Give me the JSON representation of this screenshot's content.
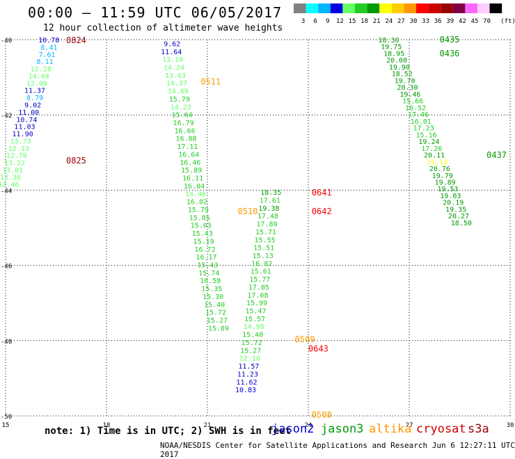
{
  "header": {
    "title": "00:00 – 11:59 UTC 06/05/2017",
    "subtitle": "12 hour collection of altimeter wave heights"
  },
  "colorbar": {
    "unit": "(ft)",
    "bins": [
      {
        "label": "3",
        "color": "#808080"
      },
      {
        "label": "6",
        "color": "#00ffff"
      },
      {
        "label": "9",
        "color": "#00b4ff"
      },
      {
        "label": "12",
        "color": "#0000e0"
      },
      {
        "label": "15",
        "color": "#66ff66"
      },
      {
        "label": "18",
        "color": "#22cc22"
      },
      {
        "label": "21",
        "color": "#009900"
      },
      {
        "label": "24",
        "color": "#ffff00"
      },
      {
        "label": "27",
        "color": "#ffcc00"
      },
      {
        "label": "30",
        "color": "#ff9900"
      },
      {
        "label": "33",
        "color": "#ff0000"
      },
      {
        "label": "36",
        "color": "#cc0000"
      },
      {
        "label": "39",
        "color": "#990000"
      },
      {
        "label": "42",
        "color": "#800040"
      },
      {
        "label": "45",
        "color": "#ff66ff"
      },
      {
        "label": "70",
        "color": "#ffccff"
      },
      {
        "label": "",
        "color": "#000000"
      }
    ]
  },
  "axes": {
    "x_ticks": [
      "15",
      "18",
      "21",
      "24",
      "27",
      "30"
    ],
    "y_ticks": [
      "-40",
      "-42",
      "-44",
      "-46",
      "-48",
      "-50"
    ]
  },
  "footer": {
    "note": "note: 1) Time is in UTC; 2) SWH is in feet",
    "satellites": [
      {
        "name": "jason2",
        "color": "#0000cc"
      },
      {
        "name": "jason3",
        "color": "#009900"
      },
      {
        "name": "altika",
        "color": "#ff9900"
      },
      {
        "name": "cryosat",
        "color": "#cc0000"
      },
      {
        "name": "s3a",
        "color": "#990000"
      }
    ],
    "credit": "NOAA/NESDIS Center for Satellite Applications and Research   Jun  6 12:27:11 UTC 2017"
  },
  "chart_data": {
    "type": "scatter",
    "x_range": [
      15,
      30
    ],
    "y_range": [
      -50,
      -40
    ],
    "passes": [
      {
        "time": "0824",
        "color": "#990000",
        "time_lon": 16.8,
        "time_lat": -40.0
      },
      {
        "time": "0825",
        "color": "#990000",
        "time_lon": 16.8,
        "time_lat": -43.2
      },
      {
        "time": "0511",
        "color": "#ff9900",
        "time_lon": 20.8,
        "time_lat": -41.1
      },
      {
        "time": "0510",
        "color": "#ff9900",
        "time_lon": 21.9,
        "time_lat": -44.55
      },
      {
        "time": "0641",
        "color": "#ff0000",
        "time_lon": 24.1,
        "time_lat": -44.05
      },
      {
        "time": "0642",
        "color": "#ff0000",
        "time_lon": 24.1,
        "time_lat": -44.55
      },
      {
        "time": "0509",
        "color": "#ff9900",
        "time_lon": 23.6,
        "time_lat": -47.95
      },
      {
        "time": "0643",
        "color": "#ff0000",
        "time_lon": 24.0,
        "time_lat": -48.2
      },
      {
        "time": "0508",
        "color": "#ff9900",
        "time_lon": 24.1,
        "time_lat": -49.95
      },
      {
        "time": "0435",
        "color": "#009900",
        "time_lon": 27.9,
        "time_lat": -39.98
      },
      {
        "time": "0436",
        "color": "#009900",
        "time_lon": 27.9,
        "time_lat": -40.35
      },
      {
        "time": "0437",
        "color": "#009900",
        "time_lon": 29.3,
        "time_lat": -43.05
      }
    ],
    "tracks": [
      {
        "lon_start": 16.6,
        "lat_start": -40.0,
        "lon_step": -0.06,
        "lat_step": 0.192,
        "values": [
          [
            "10.78",
            "#0000cc"
          ],
          [
            "8.41",
            "#00b4ff"
          ],
          [
            "7.61",
            "#00b4ff"
          ],
          [
            "8.11",
            "#00b4ff"
          ],
          [
            "12.28",
            "#66ff66"
          ],
          [
            "14.04",
            "#66ff66"
          ],
          [
            "12.09",
            "#66ff66"
          ],
          [
            "11.37",
            "#0000cc"
          ],
          [
            "8.79",
            "#00b4ff"
          ],
          [
            "9.02",
            "#0000cc"
          ],
          [
            "11.00",
            "#0000cc"
          ],
          [
            "10.74",
            "#0000cc"
          ],
          [
            "11.03",
            "#0000cc"
          ],
          [
            "11.90",
            "#0000cc"
          ],
          [
            "13.73",
            "#66ff66"
          ],
          [
            "12.13",
            "#66ff66"
          ],
          [
            "12.70",
            "#66ff66"
          ],
          [
            "13.22",
            "#66ff66"
          ],
          [
            "13.01",
            "#66ff66"
          ],
          [
            "12.36",
            "#66ff66"
          ],
          [
            "12.46",
            "#66ff66"
          ]
        ]
      },
      {
        "lon_start": 20.2,
        "lat_start": -40.1,
        "lon_step": 0.04,
        "lat_step": 0.21,
        "values": [
          [
            "9.62",
            "#0000cc"
          ],
          [
            "11.64",
            "#0000cc"
          ],
          [
            "13.19",
            "#66ff66"
          ],
          [
            "14.24",
            "#66ff66"
          ],
          [
            "13.63",
            "#66ff66"
          ],
          [
            "14.37",
            "#66ff66"
          ],
          [
            "14.69",
            "#66ff66"
          ],
          [
            "15.79",
            "#22cc22"
          ],
          [
            "14.23",
            "#66ff66"
          ],
          [
            "15.64",
            "#22cc22"
          ],
          [
            "16.79",
            "#22cc22"
          ],
          [
            "16.66",
            "#22cc22"
          ],
          [
            "16.88",
            "#22cc22"
          ],
          [
            "17.11",
            "#22cc22"
          ],
          [
            "16.64",
            "#22cc22"
          ],
          [
            "16.46",
            "#22cc22"
          ],
          [
            "15.89",
            "#22cc22"
          ],
          [
            "16.11",
            "#22cc22"
          ],
          [
            "16.04",
            "#22cc22"
          ],
          [
            "14.90",
            "#66ff66"
          ],
          [
            "16.02",
            "#22cc22"
          ],
          [
            "15.79",
            "#22cc22"
          ],
          [
            "15.85",
            "#22cc22"
          ],
          [
            "15.03",
            "#22cc22"
          ],
          [
            "15.43",
            "#22cc22"
          ],
          [
            "15.19",
            "#22cc22"
          ],
          [
            "16.72",
            "#22cc22"
          ],
          [
            "16.17",
            "#22cc22"
          ],
          [
            "15.43",
            "#22cc22"
          ],
          [
            "15.74",
            "#22cc22"
          ],
          [
            "16.58",
            "#22cc22"
          ],
          [
            "15.35",
            "#22cc22"
          ],
          [
            "15.30",
            "#22cc22"
          ],
          [
            "15.40",
            "#22cc22"
          ],
          [
            "15.72",
            "#22cc22"
          ],
          [
            "15.27",
            "#22cc22"
          ],
          [
            "15.89",
            "#22cc22"
          ]
        ]
      },
      {
        "lon_start": 23.2,
        "lat_start": -44.05,
        "lon_step": -0.03,
        "lat_step": 0.21,
        "values": [
          [
            "18.35",
            "#009900"
          ],
          [
            "17.61",
            "#22cc22"
          ],
          [
            "19.38",
            "#009900"
          ],
          [
            "17.48",
            "#22cc22"
          ],
          [
            "17.89",
            "#22cc22"
          ],
          [
            "15.71",
            "#22cc22"
          ],
          [
            "15.55",
            "#22cc22"
          ],
          [
            "15.51",
            "#22cc22"
          ],
          [
            "15.13",
            "#22cc22"
          ],
          [
            "16.82",
            "#22cc22"
          ],
          [
            "15.61",
            "#22cc22"
          ],
          [
            "15.77",
            "#22cc22"
          ],
          [
            "17.05",
            "#22cc22"
          ],
          [
            "17.08",
            "#22cc22"
          ],
          [
            "15.99",
            "#22cc22"
          ],
          [
            "15.47",
            "#22cc22"
          ],
          [
            "15.57",
            "#22cc22"
          ],
          [
            "14.98",
            "#66ff66"
          ],
          [
            "15.40",
            "#22cc22"
          ],
          [
            "15.72",
            "#22cc22"
          ],
          [
            "15.27",
            "#22cc22"
          ],
          [
            "12.10",
            "#66ff66"
          ],
          [
            "11.57",
            "#0000cc"
          ],
          [
            "11.23",
            "#0000cc"
          ],
          [
            "11.62",
            "#0000cc"
          ],
          [
            "10.83",
            "#0000cc"
          ]
        ]
      },
      {
        "lon_start": 26.7,
        "lat_start": -40.0,
        "lon_step": 0.08,
        "lat_step": 0.18,
        "values": [
          [
            "18.30",
            "#009900"
          ],
          [
            "19.75",
            "#009900"
          ],
          [
            "18.95",
            "#009900"
          ],
          [
            "20.00",
            "#009900"
          ],
          [
            "19.90",
            "#009900"
          ],
          [
            "18.52",
            "#009900"
          ],
          [
            "19.70",
            "#009900"
          ],
          [
            "20.30",
            "#009900"
          ],
          [
            "19.46",
            "#009900"
          ],
          [
            "15.66",
            "#22cc22"
          ],
          [
            "16.52",
            "#22cc22"
          ],
          [
            "17.46",
            "#22cc22"
          ],
          [
            "16.01",
            "#22cc22"
          ],
          [
            "17.23",
            "#22cc22"
          ],
          [
            "15.16",
            "#22cc22"
          ],
          [
            "19.24",
            "#009900"
          ],
          [
            "17.26",
            "#22cc22"
          ],
          [
            "20.11",
            "#009900"
          ],
          [
            "21.13",
            "#ffff00"
          ],
          [
            "20.76",
            "#009900"
          ],
          [
            "19.79",
            "#009900"
          ],
          [
            "19.89",
            "#009900"
          ],
          [
            "19.53",
            "#009900"
          ],
          [
            "19.03",
            "#009900"
          ],
          [
            "20.19",
            "#009900"
          ],
          [
            "19.35",
            "#009900"
          ],
          [
            "20.27",
            "#009900"
          ],
          [
            "18.50",
            "#009900"
          ]
        ]
      }
    ]
  }
}
